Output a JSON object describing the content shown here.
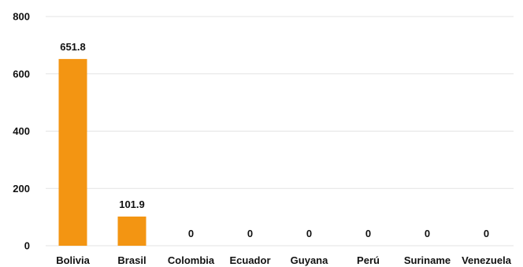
{
  "chart_data": {
    "type": "bar",
    "categories": [
      "Bolivia",
      "Brasil",
      "Colombia",
      "Ecuador",
      "Guyana",
      "Perú",
      "Suriname",
      "Venezuela"
    ],
    "values": [
      651.8,
      101.9,
      0,
      0,
      0,
      0,
      0,
      0
    ],
    "data_labels": [
      "651.8",
      "101.9",
      "0",
      "0",
      "0",
      "0",
      "0",
      "0"
    ],
    "title": "",
    "xlabel": "",
    "ylabel": "",
    "ylim": [
      0,
      800
    ],
    "yticks": [
      "0",
      "200",
      "400",
      "600",
      "800"
    ],
    "ytick_values": [
      0,
      200,
      400,
      600,
      800
    ],
    "grid": true,
    "colors": {
      "bar": "#F39512",
      "grid": "#E3E3E3",
      "text": "#111111"
    }
  }
}
